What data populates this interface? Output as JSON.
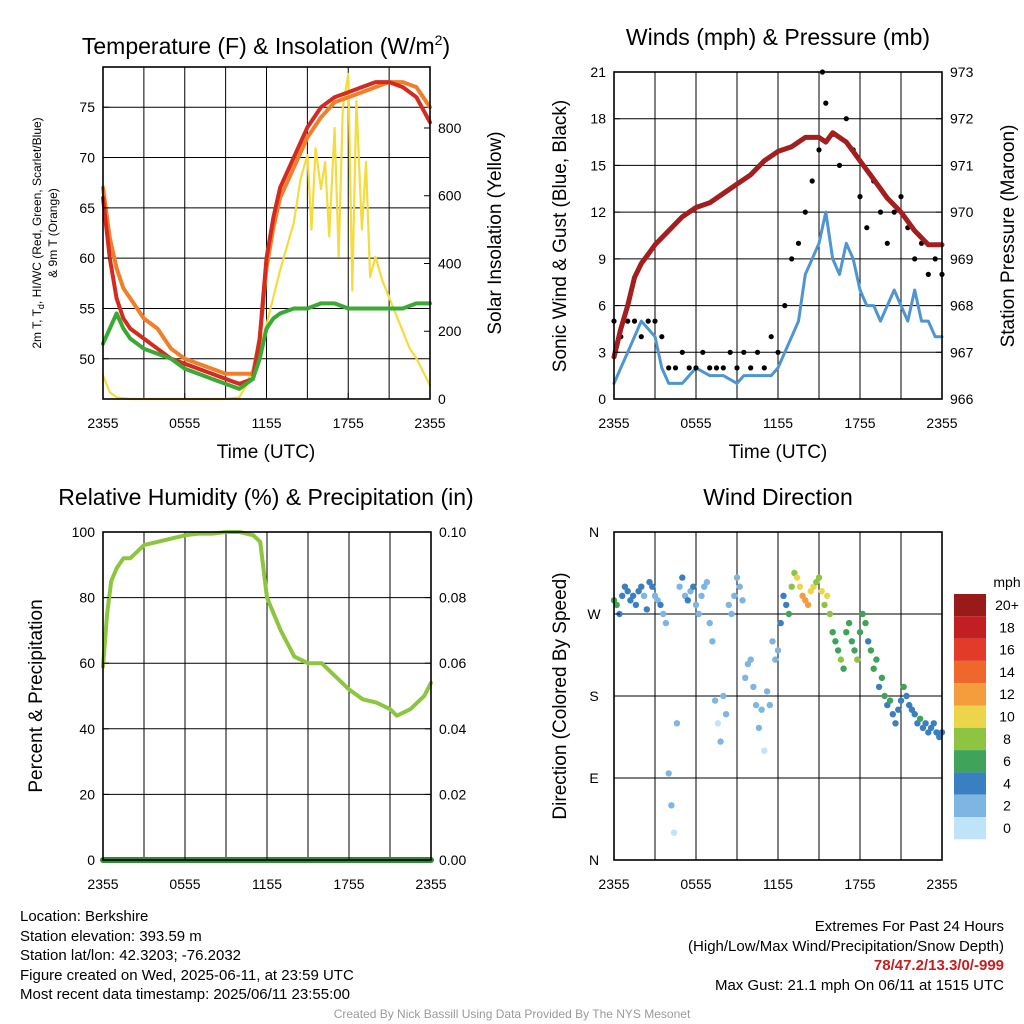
{
  "chart_data": [
    {
      "type": "line",
      "title": "Temperature (F) & Insolation (W/m²)",
      "xlabel": "Time (UTC)",
      "ylabel": "2m T, T_d, HI/WC (Red, Green, Scarlet/Blue) & 9m T (Orange)",
      "ylabel_right": "Solar Insolation (Yellow)",
      "x_ticks": [
        "2355",
        "0555",
        "1155",
        "1755",
        "2355"
      ],
      "ylim": [
        46,
        79
      ],
      "y_ticks": [
        50,
        55,
        60,
        65,
        70,
        75
      ],
      "ylim_right": [
        0,
        980
      ],
      "y_ticks_right": [
        0,
        200,
        400,
        600,
        800
      ],
      "grid": true,
      "series": [
        {
          "name": "2m T",
          "axis": "left",
          "color": "#d42a20",
          "x": [
            0,
            0.5,
            1,
            1.5,
            2,
            3,
            4,
            5,
            6,
            7,
            8,
            9,
            10,
            11,
            11.5,
            12,
            12.5,
            13,
            14,
            15,
            16,
            17,
            18,
            19,
            20,
            21,
            22,
            23,
            24
          ],
          "y": [
            66,
            60,
            56,
            54,
            53,
            52,
            51,
            50,
            49.5,
            49,
            48.5,
            48,
            47.5,
            48,
            52,
            60,
            64,
            67,
            70,
            73,
            75,
            76,
            76.5,
            77,
            77.5,
            77.5,
            77,
            76,
            73.5
          ]
        },
        {
          "name": "9m T",
          "axis": "left",
          "color": "#f07f2a",
          "x": [
            0,
            0.5,
            1,
            1.5,
            2,
            3,
            4,
            5,
            6,
            7,
            8,
            9,
            10,
            11,
            11.5,
            12,
            12.5,
            13,
            14,
            15,
            16,
            17,
            18,
            19,
            20,
            21,
            22,
            23,
            24
          ],
          "y": [
            67,
            62,
            59,
            57,
            56,
            54,
            53,
            51,
            50,
            49.5,
            49,
            48.5,
            48.5,
            48.5,
            52,
            59,
            63,
            66,
            69,
            72,
            74,
            75.5,
            76,
            76.5,
            77,
            77.5,
            77.5,
            77,
            75
          ]
        },
        {
          "name": "T_d",
          "axis": "left",
          "color": "#3aaa35",
          "x": [
            0,
            0.5,
            1,
            1.5,
            2,
            3,
            4,
            5,
            6,
            7,
            8,
            9,
            10,
            11,
            11.5,
            12,
            12.5,
            13,
            14,
            15,
            16,
            17,
            18,
            19,
            20,
            21,
            22,
            23,
            24
          ],
          "y": [
            51.5,
            53,
            54.5,
            53,
            52,
            51,
            50.5,
            50,
            49,
            48.5,
            48,
            47.5,
            47,
            48,
            50,
            53,
            54,
            54.5,
            55,
            55,
            55.5,
            55.5,
            55,
            55,
            55,
            55,
            55,
            55.5,
            55.5
          ]
        },
        {
          "name": "Solar Insolation",
          "axis": "right",
          "color": "#f5dc3c",
          "x": [
            0,
            0.5,
            1,
            2,
            4,
            6,
            8,
            9,
            10,
            10.5,
            11,
            11.5,
            12,
            12.5,
            13,
            13.5,
            14,
            14.5,
            15,
            15.3,
            15.6,
            16,
            16.3,
            16.6,
            17,
            17.3,
            17.6,
            18,
            18.3,
            18.6,
            19,
            19.3,
            19.6,
            20,
            20.5,
            21,
            21.5,
            22,
            22.5,
            23,
            23.5,
            24
          ],
          "y": [
            70,
            20,
            5,
            0,
            0,
            0,
            0,
            0,
            5,
            40,
            90,
            150,
            220,
            300,
            380,
            450,
            520,
            650,
            720,
            500,
            740,
            620,
            700,
            480,
            800,
            420,
            860,
            960,
            320,
            880,
            500,
            700,
            360,
            420,
            350,
            300,
            250,
            200,
            150,
            120,
            80,
            40
          ]
        }
      ]
    },
    {
      "type": "scatter",
      "title": "Winds (mph) & Pressure (mb)",
      "xlabel": "Time (UTC)",
      "ylabel": "Sonic Wind & Gust (Blue, Black)",
      "ylabel_right": "Station Pressure (Maroon)",
      "x_ticks": [
        "2355",
        "0555",
        "1155",
        "1755",
        "2355"
      ],
      "ylim": [
        0,
        21
      ],
      "y_ticks": [
        0,
        3,
        6,
        9,
        12,
        15,
        18,
        21
      ],
      "ylim_right": [
        966,
        973
      ],
      "y_ticks_right": [
        966,
        967,
        968,
        969,
        970,
        971,
        972,
        973
      ],
      "grid": true,
      "series": [
        {
          "name": "Wind",
          "axis": "left",
          "color": "#4f95cf",
          "x": [
            0,
            0.5,
            1,
            1.5,
            2,
            2.5,
            3,
            3.5,
            4,
            5,
            6,
            7,
            8,
            9,
            9.5,
            10,
            10.5,
            11,
            11.5,
            12,
            12.5,
            13,
            13.5,
            14,
            14.5,
            15,
            15.5,
            16,
            16.5,
            17,
            17.5,
            18,
            18.5,
            19,
            19.5,
            20,
            20.5,
            21,
            21.5,
            22,
            22.5,
            23,
            23.5,
            24
          ],
          "y": [
            1,
            2,
            3,
            4,
            5,
            4.5,
            4,
            2,
            1,
            1,
            2,
            1.5,
            1.5,
            1,
            1.5,
            1.5,
            1.5,
            1.5,
            1.5,
            2,
            3,
            4,
            5,
            8,
            9,
            10,
            12,
            9,
            8,
            10,
            9,
            7,
            6,
            6,
            5,
            6,
            7,
            6,
            5,
            7,
            5,
            5,
            4,
            4
          ]
        },
        {
          "name": "Gust",
          "axis": "left",
          "color": "#000000",
          "x": [
            0,
            0.5,
            1,
            1.5,
            2,
            2.5,
            3,
            3.5,
            4,
            4.5,
            5,
            5.5,
            6,
            6.5,
            7,
            7.5,
            8,
            8.5,
            9,
            9.5,
            10,
            10.5,
            11,
            11.5,
            12,
            12.5,
            13,
            13.5,
            14,
            14.5,
            15,
            15.25,
            15.5,
            16,
            16.5,
            17,
            17.5,
            18,
            18.5,
            19,
            19.5,
            20,
            20.5,
            21,
            21.5,
            22,
            22.5,
            23,
            23.5,
            24
          ],
          "y": [
            5,
            4,
            5,
            5,
            4,
            5,
            5,
            4,
            2,
            2,
            3,
            2,
            2,
            3,
            2,
            2,
            2,
            3,
            2,
            3,
            2,
            3,
            2,
            4,
            3,
            6,
            9,
            10,
            12,
            14,
            16,
            21,
            19,
            17,
            15,
            18,
            16,
            13,
            11,
            14,
            12,
            10,
            12,
            13,
            11,
            9,
            10,
            8,
            9,
            8
          ]
        },
        {
          "name": "Pressure",
          "axis": "right",
          "color": "#a31e1e",
          "x": [
            0,
            0.5,
            1,
            1.5,
            2,
            2.5,
            3,
            4,
            5,
            6,
            7,
            8,
            9,
            10,
            11,
            12,
            13,
            14,
            15,
            15.5,
            16,
            16.5,
            17,
            17.5,
            18,
            19,
            20,
            21,
            22,
            23,
            24
          ],
          "y": [
            966.9,
            967.5,
            968,
            968.6,
            968.9,
            969.1,
            969.3,
            969.6,
            969.9,
            970.1,
            970.2,
            970.4,
            970.6,
            970.8,
            971.1,
            971.3,
            971.4,
            971.6,
            971.6,
            971.5,
            971.7,
            971.6,
            971.5,
            971.3,
            971.1,
            970.7,
            970.3,
            970,
            969.6,
            969.3,
            969.3
          ]
        }
      ]
    },
    {
      "type": "line",
      "title": "Relative Humidity (%) & Precipitation (in)",
      "ylabel": "Percent & Precipitation",
      "x_ticks": [
        "2355",
        "0555",
        "1155",
        "1755",
        "2355"
      ],
      "ylim": [
        0,
        100
      ],
      "y_ticks": [
        0,
        20,
        40,
        60,
        80,
        100
      ],
      "ylim_right": [
        0,
        0.1
      ],
      "y_ticks_right": [
        "0.00",
        "0.02",
        "0.04",
        "0.06",
        "0.08",
        "0.10"
      ],
      "grid": true,
      "series": [
        {
          "name": "Relative Humidity",
          "axis": "left",
          "color": "#8cc63e",
          "x": [
            0,
            0.3,
            0.6,
            1,
            1.5,
            2,
            2.5,
            3,
            4,
            5,
            6,
            7,
            8,
            9,
            10,
            11,
            11.5,
            12,
            12.5,
            13,
            13.5,
            14,
            15,
            16,
            17,
            18,
            19,
            20,
            21,
            21.5,
            22,
            22.5,
            23,
            23.5,
            24
          ],
          "y": [
            59,
            75,
            85,
            89,
            92,
            92,
            94,
            96,
            97,
            98,
            99,
            99.5,
            99.5,
            100,
            100,
            99,
            97,
            80,
            75,
            70,
            66,
            62,
            60,
            60,
            56,
            52,
            49,
            48,
            46,
            44,
            45,
            46,
            48,
            50,
            54
          ]
        },
        {
          "name": "Precipitation",
          "axis": "right",
          "color": "#2e8b34",
          "x": [
            0,
            24
          ],
          "y": [
            0,
            0
          ]
        }
      ]
    },
    {
      "type": "scatter",
      "title": "Wind Direction",
      "ylabel": "Direction (Colored By Speed)",
      "x_ticks": [
        "2355",
        "0555",
        "1155",
        "1755",
        "2355"
      ],
      "y_ticks": [
        "N",
        "E",
        "S",
        "W",
        "N"
      ],
      "ylim": [
        0,
        360
      ],
      "grid": true,
      "colorbar_unit": "mph",
      "colorbar_labels": [
        "20+",
        "18",
        "16",
        "14",
        "12",
        "10",
        "8",
        "6",
        "4",
        "2",
        "0"
      ],
      "colorbar_colors": [
        "#9a1a1a",
        "#c21f25",
        "#e23b2a",
        "#f0672c",
        "#f59c3d",
        "#ecd54b",
        "#8fc442",
        "#3fa45a",
        "#3a7fc0",
        "#7db6e2",
        "#bfe3f7"
      ],
      "x": [
        0,
        0.2,
        0.4,
        0.6,
        0.8,
        1,
        1.2,
        1.4,
        1.6,
        1.8,
        2,
        2.2,
        2.4,
        2.6,
        2.8,
        3,
        3.2,
        3.4,
        3.6,
        3.8,
        4,
        4.2,
        4.4,
        4.6,
        4.8,
        5,
        5.2,
        5.4,
        5.6,
        5.8,
        6,
        6.2,
        6.4,
        6.6,
        6.8,
        7,
        7.2,
        7.4,
        7.6,
        7.8,
        8,
        8.2,
        8.4,
        8.6,
        8.8,
        9,
        9.2,
        9.4,
        9.6,
        9.8,
        10,
        10.2,
        10.4,
        10.6,
        10.8,
        11,
        11.2,
        11.4,
        11.6,
        11.8,
        12,
        12.2,
        12.4,
        12.6,
        12.8,
        13,
        13.2,
        13.4,
        13.6,
        13.8,
        14,
        14.2,
        14.4,
        14.6,
        14.8,
        15,
        15.2,
        15.4,
        15.6,
        15.8,
        16,
        16.2,
        16.4,
        16.6,
        16.8,
        17,
        17.2,
        17.4,
        17.6,
        17.8,
        18,
        18.2,
        18.4,
        18.6,
        18.8,
        19,
        19.2,
        19.4,
        19.6,
        19.8,
        20,
        20.2,
        20.4,
        20.6,
        20.8,
        21,
        21.2,
        21.4,
        21.6,
        21.8,
        22,
        22.2,
        22.4,
        22.6,
        22.8,
        23,
        23.2,
        23.4,
        23.6,
        23.8,
        24
      ],
      "y": [
        285,
        280,
        270,
        290,
        300,
        295,
        285,
        290,
        280,
        295,
        300,
        290,
        275,
        305,
        300,
        290,
        285,
        280,
        270,
        260,
        95,
        60,
        30,
        150,
        300,
        310,
        290,
        285,
        295,
        300,
        280,
        270,
        290,
        300,
        305,
        260,
        240,
        175,
        150,
        130,
        180,
        160,
        280,
        270,
        290,
        310,
        300,
        285,
        200,
        215,
        220,
        190,
        170,
        145,
        165,
        120,
        185,
        170,
        240,
        220,
        230,
        260,
        290,
        280,
        270,
        300,
        315,
        310,
        300,
        290,
        285,
        280,
        295,
        300,
        305,
        310,
        295,
        280,
        290,
        270,
        250,
        240,
        230,
        220,
        210,
        250,
        260,
        240,
        230,
        220,
        250,
        270,
        260,
        240,
        230,
        210,
        220,
        190,
        200,
        180,
        170,
        175,
        160,
        150,
        165,
        175,
        190,
        180,
        170,
        165,
        160,
        150,
        155,
        145,
        150,
        140,
        145,
        150,
        140,
        135,
        140
      ],
      "speed": [
        6,
        5,
        4,
        4,
        4,
        3,
        4,
        4,
        4,
        4,
        3,
        2,
        3,
        3,
        4,
        2,
        2,
        3,
        2,
        2,
        1,
        1,
        0,
        1,
        2,
        3,
        2,
        3,
        2,
        3,
        2,
        2,
        2,
        1,
        2,
        1,
        1,
        1,
        0,
        1,
        1,
        1,
        1,
        2,
        2,
        1,
        1,
        1,
        1,
        1,
        2,
        2,
        1,
        1,
        1,
        0,
        1,
        1,
        1,
        1,
        2,
        3,
        4,
        4,
        6,
        7,
        8,
        9,
        10,
        11,
        12,
        11,
        10,
        9,
        8,
        7,
        9,
        8,
        10,
        7,
        6,
        6,
        5,
        7,
        6,
        6,
        5,
        6,
        5,
        7,
        6,
        5,
        6,
        4,
        5,
        6,
        5,
        4,
        5,
        6,
        4,
        5,
        4,
        4,
        3,
        4,
        5,
        4,
        4,
        3,
        4,
        4,
        5,
        3,
        3,
        4,
        4,
        3,
        4,
        4,
        4
      ]
    }
  ],
  "info": {
    "location": "Location: Berkshire",
    "elevation": "Station elevation: 393.59 m",
    "latlon": "Station lat/lon: 42.3203; -76.2032",
    "created": "Figure created on Wed, 2025-06-11, at 23:59 UTC",
    "recent": "Most recent data timestamp: 2025/06/11 23:55:00"
  },
  "extremes": {
    "heading": "Extremes For Past 24 Hours",
    "subheading": "(High/Low/Max Wind/Precipitation/Snow Depth)",
    "values": "78/47.2/13.3/0/-999",
    "max_gust": "Max Gust: 21.1 mph On 06/11 at 1515 UTC"
  },
  "credit": "Created By Nick Bassill Using Data Provided By The NYS Mesonet"
}
